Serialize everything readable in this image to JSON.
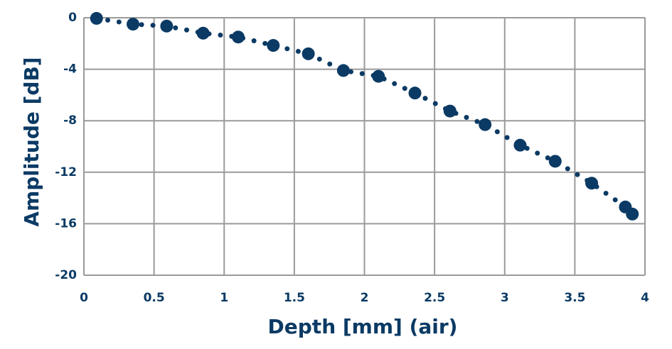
{
  "chart_data": {
    "type": "scatter",
    "x_label": "Depth [mm] (air)",
    "y_label": "Amplitude [dB]",
    "x": [
      0.09,
      0.35,
      0.59,
      0.85,
      1.1,
      1.35,
      1.6,
      1.85,
      2.1,
      2.36,
      2.61,
      2.86,
      3.11,
      3.36,
      3.62,
      3.86,
      3.91
    ],
    "values": [
      -0.05,
      -0.5,
      -0.65,
      -1.2,
      -1.5,
      -2.15,
      -2.8,
      -4.1,
      -4.55,
      -5.85,
      -7.25,
      -8.3,
      -9.9,
      -11.15,
      -12.85,
      -14.7,
      -15.25
    ],
    "color": "#0b3a64",
    "line_style": "dotted",
    "xlim": [
      0,
      4
    ],
    "xticks": [
      0,
      0.5,
      1,
      1.5,
      2,
      2.5,
      3,
      3.5,
      4
    ],
    "ylim": [
      -20,
      0
    ],
    "yticks": [
      0,
      -4,
      -8,
      -12,
      -16,
      -20
    ],
    "grid": true
  }
}
